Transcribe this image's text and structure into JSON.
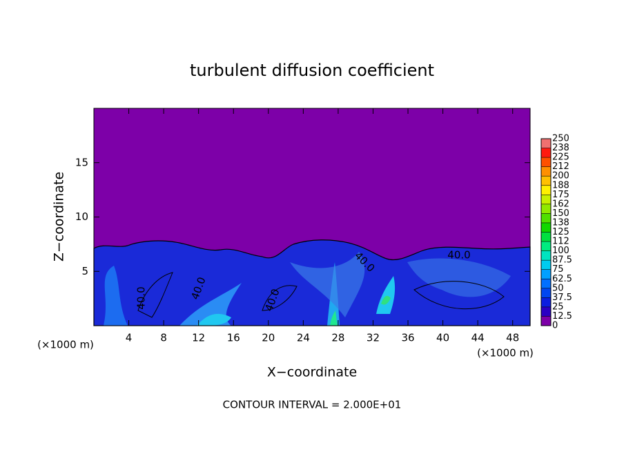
{
  "chart_data": {
    "type": "contour",
    "title": "turbulent diffusion coefficient",
    "x_label": "X−coordinate",
    "y_label": "Z−coordinate",
    "x_unit": "(×1000 m)",
    "y_unit": "(×1000 m)",
    "note": "CONTOUR INTERVAL = 2.000E+01",
    "xlim": [
      0,
      50
    ],
    "xticks": [
      4,
      8,
      12,
      16,
      20,
      24,
      28,
      32,
      36,
      40,
      44,
      48
    ],
    "ylim": [
      0,
      20
    ],
    "yticks": [
      5,
      10,
      15
    ],
    "contour_labels": [
      "40.0",
      "40.0",
      "40.0",
      "40.0",
      "40.0"
    ],
    "colorbar": {
      "levels": [
        0,
        12.5,
        25,
        37.5,
        50,
        62.5,
        75,
        87.5,
        100,
        112,
        125,
        138,
        150,
        162,
        175,
        188,
        200,
        212,
        225,
        238,
        250
      ],
      "colors": [
        "#7d00a8",
        "#2a00c4",
        "#0a1ee0",
        "#0046f0",
        "#0070ff",
        "#00a0ff",
        "#00ccf0",
        "#00e4c0",
        "#00ec80",
        "#00e040",
        "#10d800",
        "#50e000",
        "#90ea00",
        "#c8f000",
        "#fff000",
        "#ffc000",
        "#ff9000",
        "#ff5000",
        "#ff1a10",
        "#f07070"
      ]
    }
  }
}
